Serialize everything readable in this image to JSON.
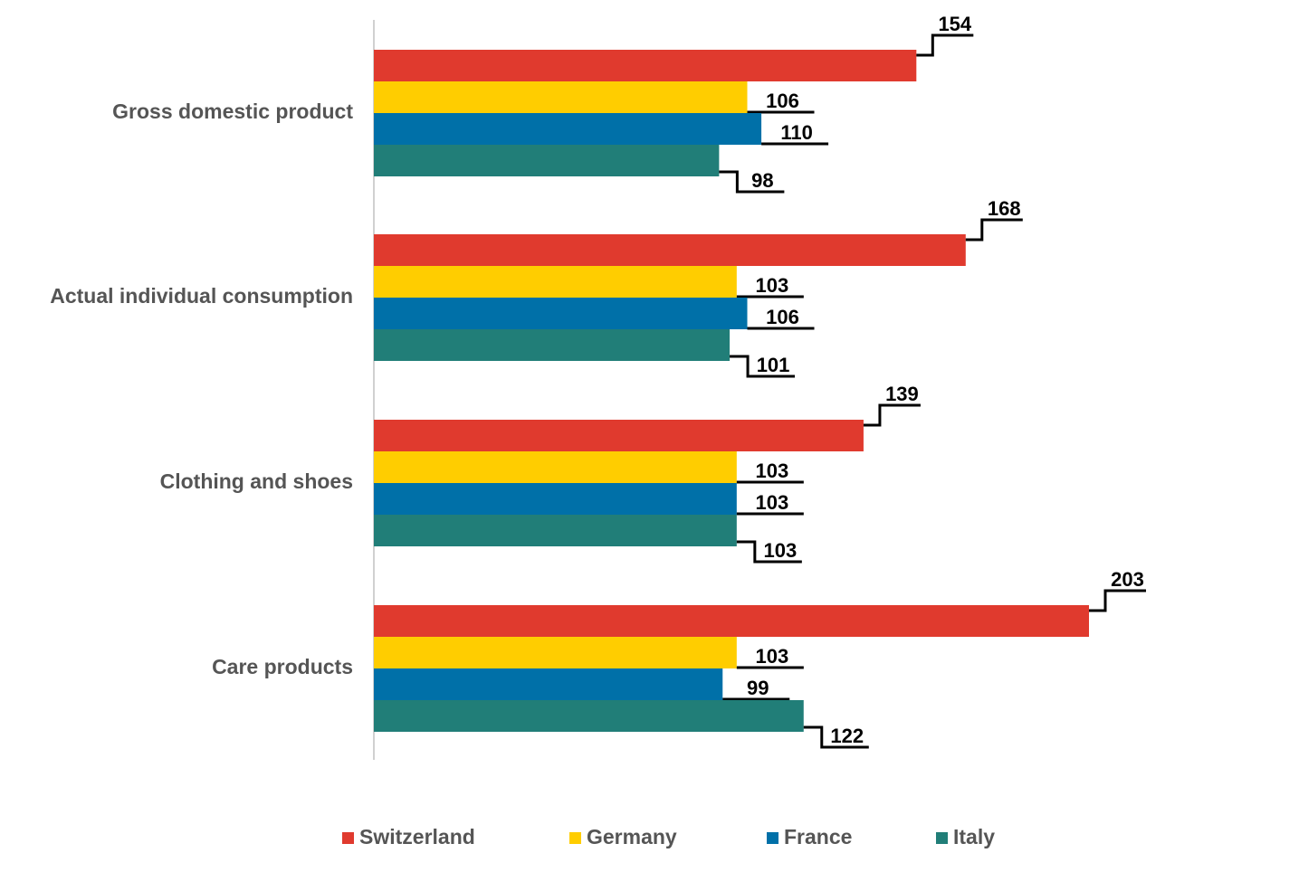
{
  "chart_data": {
    "type": "bar",
    "orientation": "horizontal",
    "categories": [
      "Gross domestic product",
      "Actual individual consumption",
      "Clothing and shoes",
      "Care products"
    ],
    "series": [
      {
        "name": "Switzerland",
        "color": "#E03A2E",
        "values": [
          154,
          168,
          139,
          203
        ]
      },
      {
        "name": "Germany",
        "color": "#FFCD00",
        "values": [
          106,
          103,
          103,
          103
        ]
      },
      {
        "name": "France",
        "color": "#0070A8",
        "values": [
          110,
          106,
          103,
          99
        ]
      },
      {
        "name": "Italy",
        "color": "#217E78",
        "values": [
          98,
          101,
          103,
          122
        ]
      }
    ],
    "legend_position": "bottom",
    "grid": false
  }
}
